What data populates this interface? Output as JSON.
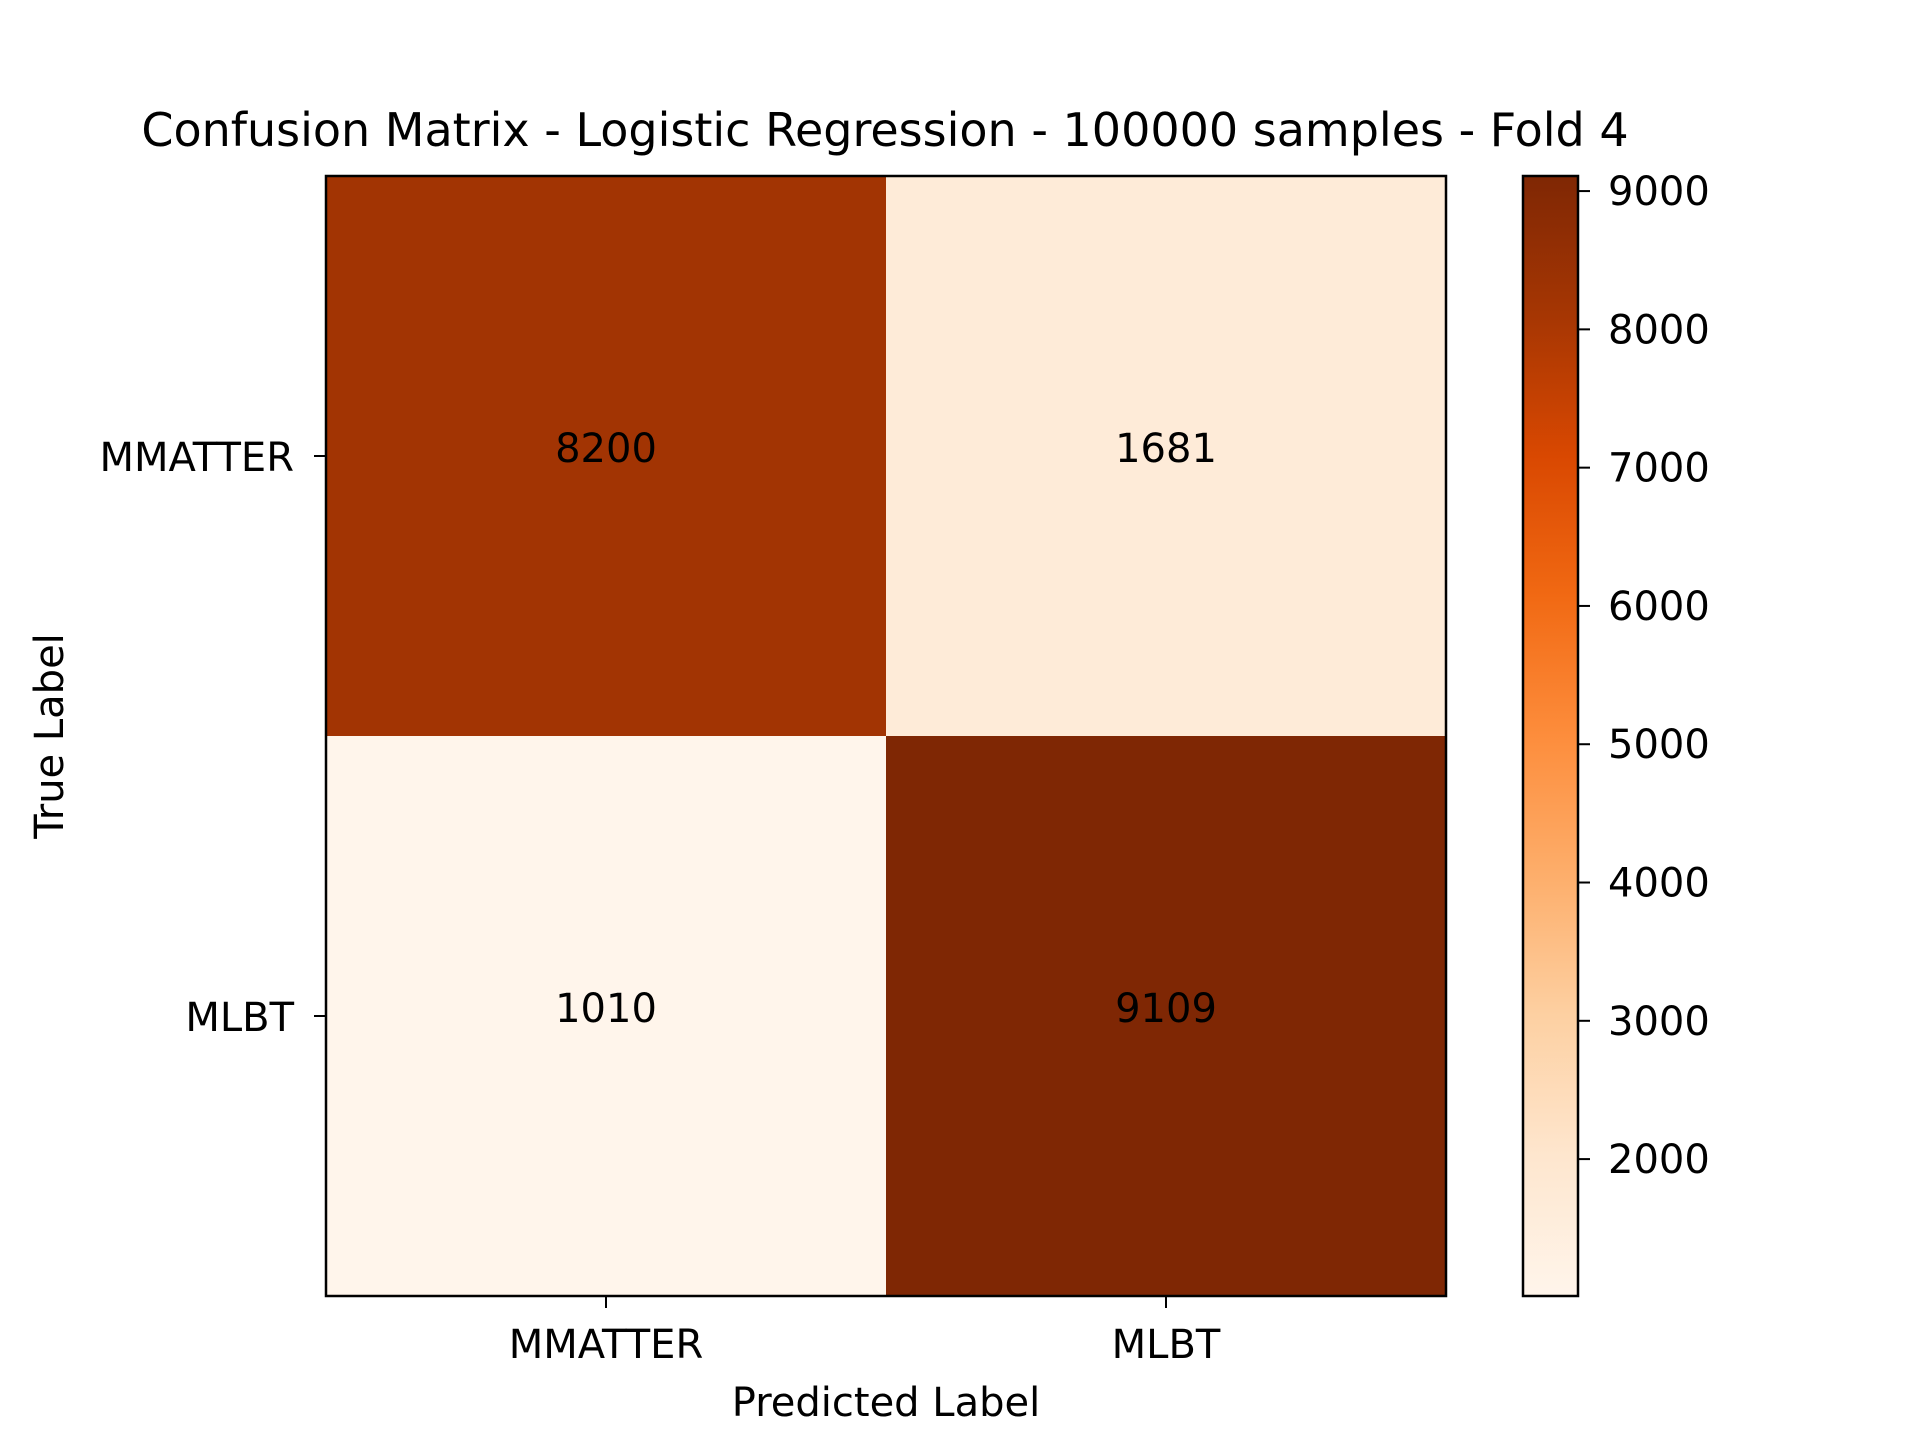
{
  "chart_data": {
    "type": "heatmap",
    "title": "Confusion Matrix - Logistic Regression - 100000 samples - Fold 4",
    "xlabel": "Predicted Label",
    "ylabel": "True Label",
    "x_categories": [
      "MMATTER",
      "MLBT"
    ],
    "y_categories": [
      "MMATTER",
      "MLBT"
    ],
    "values": [
      [
        8200,
        1681
      ],
      [
        1010,
        9109
      ]
    ],
    "colormap": "Oranges",
    "colorbar": {
      "min": 1010,
      "max": 9109,
      "ticks": [
        2000,
        3000,
        4000,
        5000,
        6000,
        7000,
        8000,
        9000
      ],
      "tick_labels": [
        "2000",
        "3000",
        "4000",
        "5000",
        "6000",
        "7000",
        "8000",
        "9000"
      ]
    },
    "grid": false
  }
}
